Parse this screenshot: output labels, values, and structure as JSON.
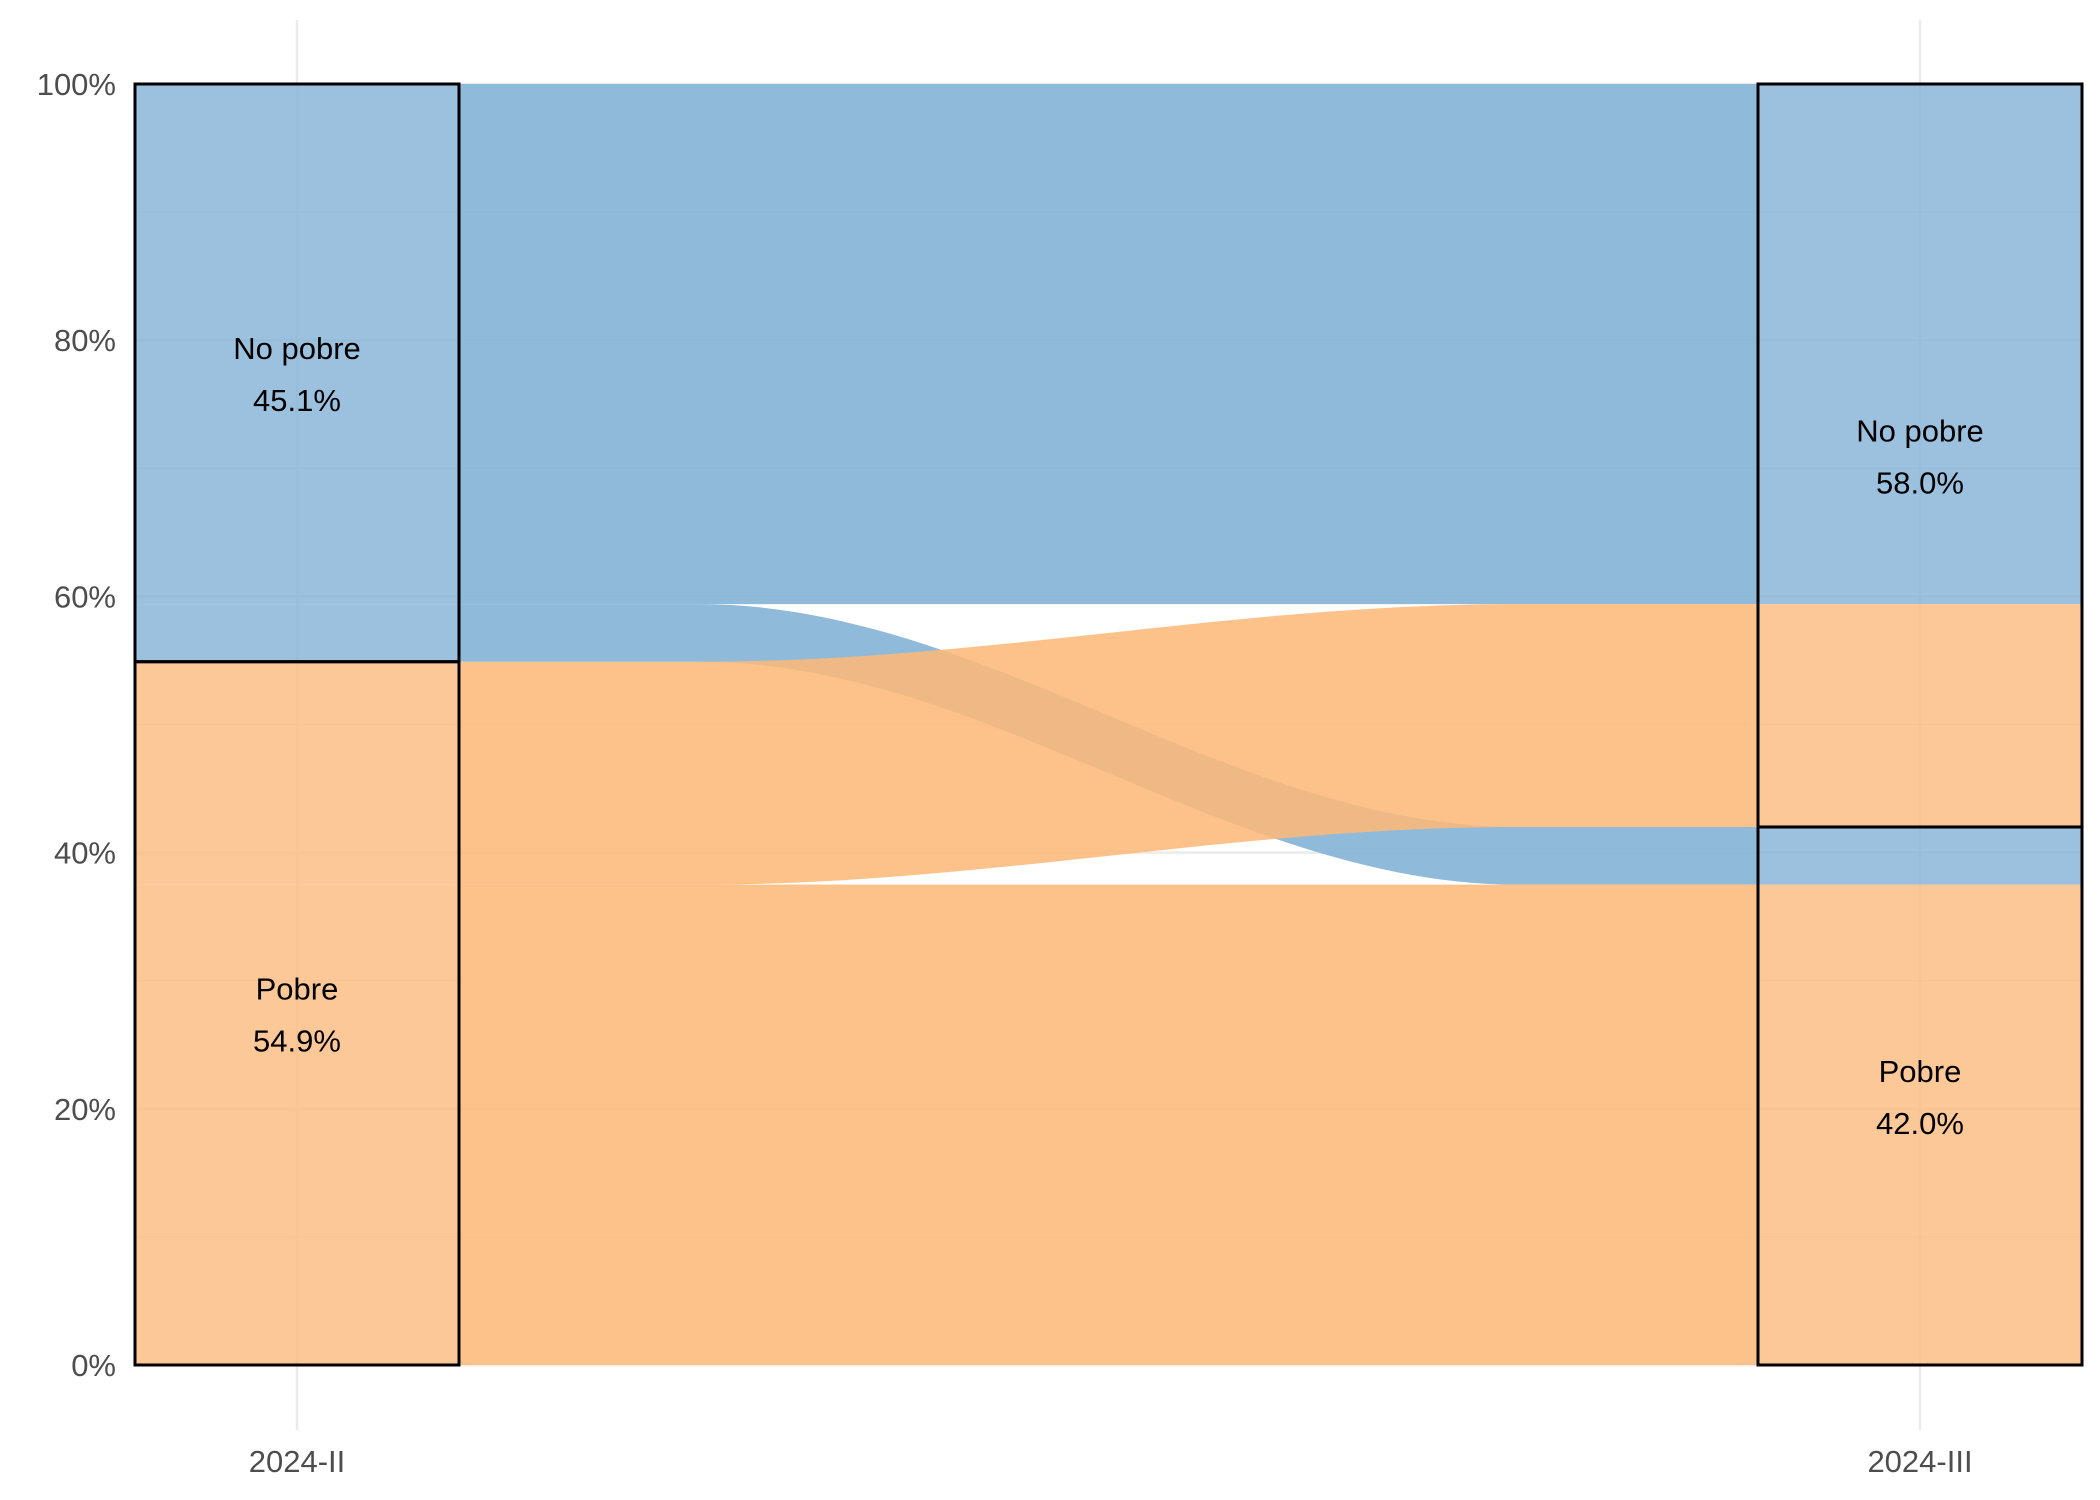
{
  "chart_data": {
    "type": "alluvial",
    "x_categories": [
      "2024-II",
      "2024-III"
    ],
    "y_ticks": [
      "0%",
      "20%",
      "40%",
      "60%",
      "80%",
      "100%"
    ],
    "ylim": [
      0,
      100
    ],
    "grid": true,
    "colors": {
      "No pobre": "#7fb0d5",
      "Pobre": "#fdb87a",
      "node_border": "#000000",
      "grid": "#ebebeb"
    },
    "strata": {
      "2024-II": [
        {
          "name": "No pobre",
          "value": 45.1,
          "label": "45.1%"
        },
        {
          "name": "Pobre",
          "value": 54.9,
          "label": "54.9%"
        }
      ],
      "2024-III": [
        {
          "name": "No pobre",
          "value": 58.0,
          "label": "58.0%"
        },
        {
          "name": "Pobre",
          "value": 42.0,
          "label": "42.0%"
        }
      ]
    },
    "flows": [
      {
        "from": "No pobre",
        "to": "No pobre",
        "value": 40.6,
        "color_by": "No pobre"
      },
      {
        "from": "No pobre",
        "to": "Pobre",
        "value": 4.5,
        "color_by": "No pobre"
      },
      {
        "from": "Pobre",
        "to": "No pobre",
        "value": 17.4,
        "color_by": "Pobre"
      },
      {
        "from": "Pobre",
        "to": "Pobre",
        "value": 37.5,
        "color_by": "Pobre"
      }
    ]
  }
}
